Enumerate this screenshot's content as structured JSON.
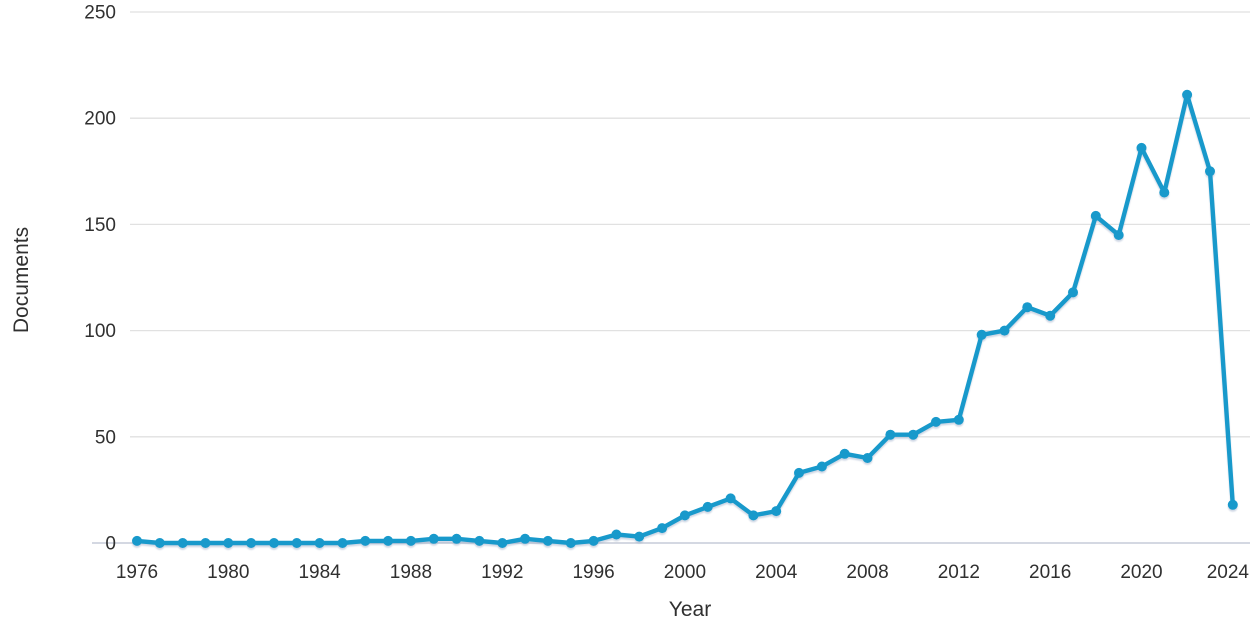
{
  "chart_data": {
    "type": "line",
    "title": "",
    "xlabel": "Year",
    "ylabel": "Documents",
    "x": [
      1976,
      1977,
      1978,
      1979,
      1980,
      1981,
      1982,
      1983,
      1984,
      1985,
      1986,
      1987,
      1988,
      1989,
      1990,
      1991,
      1992,
      1993,
      1994,
      1995,
      1996,
      1997,
      1998,
      1999,
      2000,
      2001,
      2002,
      2003,
      2004,
      2005,
      2006,
      2007,
      2008,
      2009,
      2010,
      2011,
      2012,
      2013,
      2014,
      2015,
      2016,
      2017,
      2018,
      2019,
      2020,
      2021,
      2022,
      2023,
      2024
    ],
    "values": [
      1,
      0,
      0,
      0,
      0,
      0,
      0,
      0,
      0,
      0,
      1,
      1,
      1,
      2,
      2,
      1,
      0,
      2,
      1,
      0,
      1,
      4,
      3,
      7,
      13,
      17,
      21,
      13,
      15,
      33,
      36,
      42,
      40,
      51,
      51,
      57,
      58,
      98,
      100,
      111,
      107,
      118,
      154,
      145,
      186,
      165,
      211,
      175,
      18
    ],
    "series_name": "Documents",
    "xticks": [
      1976,
      1980,
      1984,
      1988,
      1992,
      1996,
      2000,
      2004,
      2008,
      2012,
      2016,
      2020,
      2024
    ],
    "yticks": [
      0,
      50,
      100,
      150,
      200,
      250
    ],
    "xlim": [
      1976,
      2024
    ],
    "ylim": [
      0,
      250
    ],
    "grid": "horizontal",
    "legend_position": "none",
    "marker": "circle",
    "line_color": "#1899cb",
    "text_color": "#303030",
    "grid_color": "#e1e1e1",
    "zero_line_color": "#c6ccd8"
  }
}
